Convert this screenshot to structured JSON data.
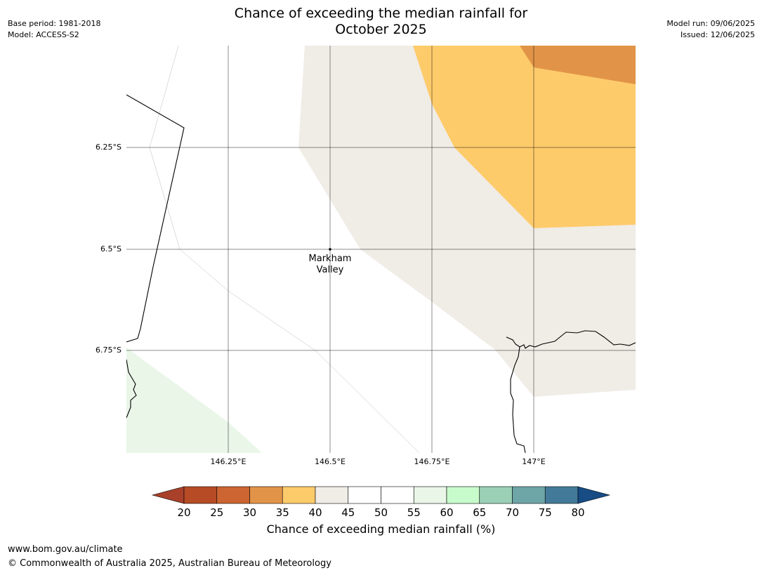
{
  "title_line1": "Chance of exceeding the median rainfall for",
  "title_line2": "October 2025",
  "base_period": "Base period: 1981-2018",
  "model": "Model: ACCESS-S2",
  "model_run": "Model run: 09/06/2025",
  "issued": "Issued: 12/06/2025",
  "lat_labels": [
    "6.25°S",
    "6.5°S",
    "6.75°S"
  ],
  "lon_labels": [
    "146.25°E",
    "146.5°E",
    "146.75°E",
    "147°E"
  ],
  "place": {
    "line1": "Markham",
    "line2": "Valley"
  },
  "colorbar": {
    "title": "Chance of exceeding median rainfall (%)",
    "ticks": [
      "20",
      "25",
      "30",
      "35",
      "40",
      "45",
      "50",
      "55",
      "60",
      "65",
      "70",
      "75",
      "80"
    ],
    "colors": [
      "#a8402a",
      "#b64b26",
      "#cd6532",
      "#e19448",
      "#fecb6b",
      "#f0ece6",
      "#ffffff",
      "#ffffff",
      "#e9f6e8",
      "#c8fbcb",
      "#9bd0b6",
      "#6ea5a7",
      "#437a9a",
      "#174c85"
    ]
  },
  "footer_url": "www.bom.gov.au/climate",
  "footer_copyright": "© Commonwealth of Australia 2025, Australian Bureau of Meteorology",
  "fills": {
    "below_35": "#e19448",
    "p35_40": "#fecb6b",
    "p40_45": "#f0ece6",
    "p55_60": "#e9f6e8"
  }
}
